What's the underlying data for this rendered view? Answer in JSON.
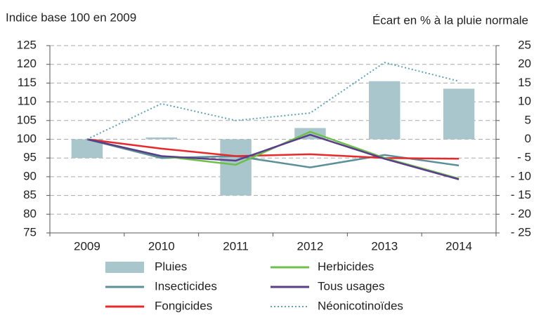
{
  "chart_data": {
    "type": "bar",
    "title": "Indice base 100 en 2009",
    "y2_label": "Écart en % à la pluie normale",
    "categories": [
      "2009",
      "2010",
      "2011",
      "2012",
      "2013",
      "2014"
    ],
    "ylim": [
      75,
      125
    ],
    "yticks": [
      75,
      80,
      85,
      90,
      95,
      100,
      105,
      110,
      115,
      120,
      125
    ],
    "y2lim": [
      -25,
      25
    ],
    "y2ticks": [
      {
        "value": -25,
        "label": "- 25"
      },
      {
        "value": -20,
        "label": "- 20"
      },
      {
        "value": -15,
        "label": "- 15"
      },
      {
        "value": -10,
        "label": "- 10"
      },
      {
        "value": -5,
        "label": "- 5"
      },
      0,
      5,
      10,
      15,
      20,
      25
    ],
    "grid": true,
    "series": [
      {
        "name": "Pluies",
        "type": "bar",
        "axis": "y2",
        "color": "#a8c6cc",
        "values": [
          -5,
          0.5,
          -15,
          3,
          15.5,
          13.5
        ]
      },
      {
        "name": "Insecticides",
        "type": "line",
        "color": "#5b8f9a",
        "values": [
          100,
          95,
          95.5,
          92.5,
          95.8,
          93
        ]
      },
      {
        "name": "Fongicides",
        "type": "line",
        "color": "#e8282b",
        "values": [
          100,
          97.5,
          95.5,
          96,
          95,
          94.8
        ]
      },
      {
        "name": "Herbicides",
        "type": "line",
        "color": "#6cc04a",
        "values": [
          100,
          95.5,
          93.2,
          102,
          95,
          89.5
        ]
      },
      {
        "name": "Tous usages",
        "type": "line",
        "color": "#5a3e8a",
        "values": [
          100,
          95.5,
          94.3,
          101.2,
          94.8,
          89.3
        ]
      },
      {
        "name": "Néonicotinoïdes",
        "type": "line",
        "dash": "dotted",
        "color": "#5fa3b5",
        "values": [
          100,
          109.5,
          105,
          107,
          120.5,
          115.5
        ]
      }
    ]
  }
}
